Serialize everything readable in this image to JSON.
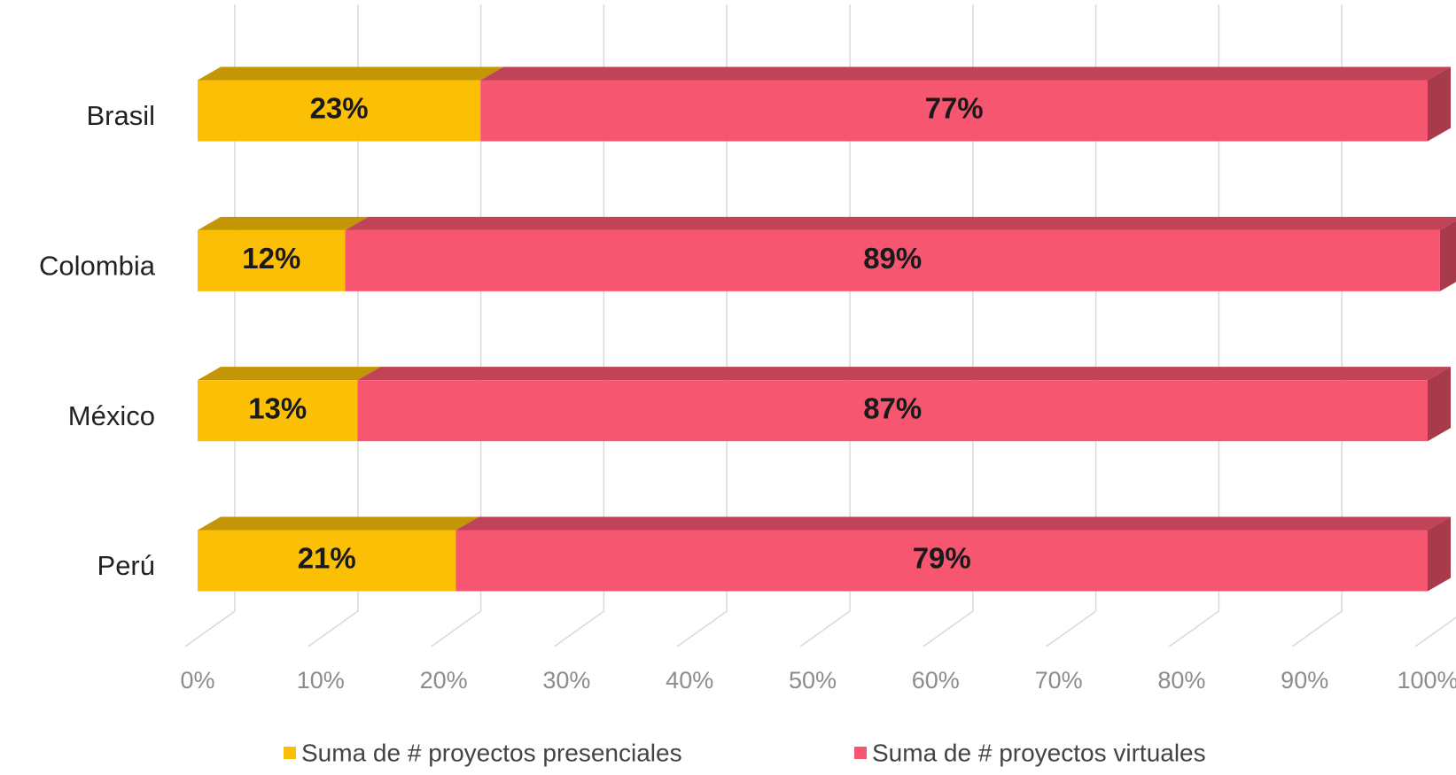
{
  "chart_data": {
    "type": "bar",
    "orientation": "horizontal",
    "stacked": true,
    "categories": [
      "Brasil",
      "Colombia",
      "México",
      "Perú"
    ],
    "series": [
      {
        "name": "Suma de # proyectos presenciales",
        "color": "#fbbf06",
        "values": [
          23,
          12,
          13,
          21
        ],
        "value_labels": [
          "23%",
          "12%",
          "13%",
          "21%"
        ]
      },
      {
        "name": "Suma de # proyectos virtuales",
        "color": "#f6566f",
        "values": [
          77,
          89,
          87,
          79
        ],
        "value_labels": [
          "77%",
          "89%",
          "87%",
          "79%"
        ]
      }
    ],
    "xlim": [
      0,
      100
    ],
    "xticks": [
      {
        "value": 0,
        "label": "0%"
      },
      {
        "value": 10,
        "label": "10%"
      },
      {
        "value": 20,
        "label": "20%"
      },
      {
        "value": 30,
        "label": "30%"
      },
      {
        "value": 40,
        "label": "40%"
      },
      {
        "value": 50,
        "label": "50%"
      },
      {
        "value": 60,
        "label": "60%"
      },
      {
        "value": 70,
        "label": "70%"
      },
      {
        "value": 80,
        "label": "80%"
      },
      {
        "value": 90,
        "label": "90%"
      },
      {
        "value": 100,
        "label": "100%"
      }
    ],
    "grid": true,
    "legend": "bottom"
  }
}
